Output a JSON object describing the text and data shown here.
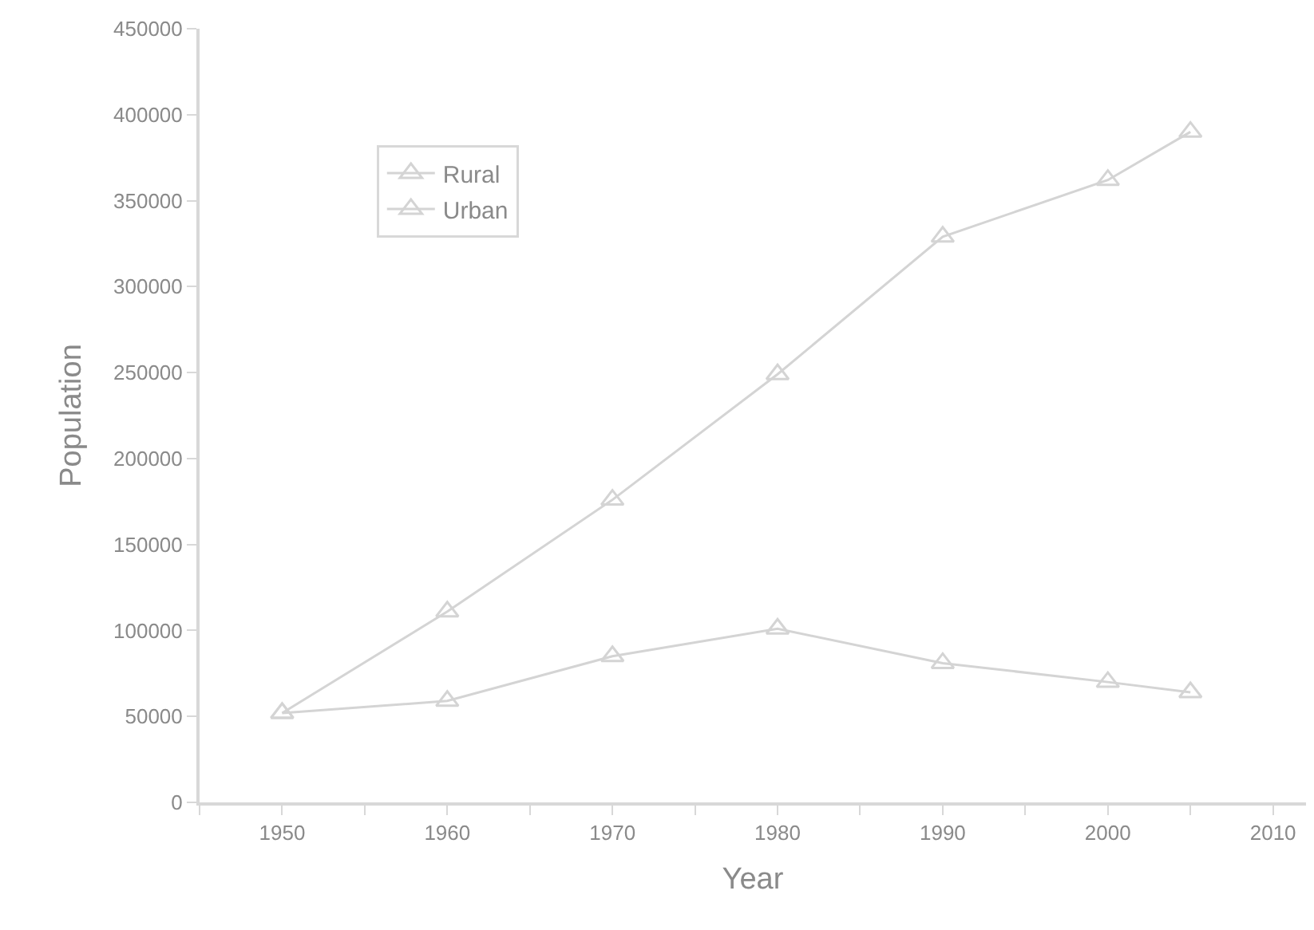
{
  "chart_data": {
    "type": "line",
    "xlabel": "Year",
    "ylabel": "Population",
    "x": [
      1950,
      1960,
      1970,
      1980,
      1990,
      2000,
      2005
    ],
    "series": [
      {
        "name": "Rural",
        "color": "#d4d4d4",
        "values": [
          52000,
          59000,
          85000,
          101000,
          81000,
          70000,
          64000
        ]
      },
      {
        "name": "Urban",
        "color": "#d4d4d4",
        "values": [
          52000,
          111000,
          176000,
          249000,
          329000,
          362000,
          390000
        ]
      }
    ],
    "xlim": [
      1945,
      2012
    ],
    "xticks": [
      {
        "value": 1945,
        "label": null
      },
      1950,
      {
        "value": 1955,
        "label": null
      },
      1960,
      {
        "value": 1965,
        "label": null
      },
      1970,
      {
        "value": 1975,
        "label": null
      },
      1980,
      {
        "value": 1985,
        "label": null
      },
      1990,
      {
        "value": 1995,
        "label": null
      },
      2000,
      {
        "value": 2005,
        "label": null
      },
      2010
    ],
    "ylim": [
      0,
      450000
    ],
    "yticks": [
      0,
      50000,
      100000,
      150000,
      200000,
      250000,
      300000,
      350000,
      400000,
      450000
    ],
    "marker": "triangle",
    "line_style": "solid",
    "legend": "top left"
  }
}
